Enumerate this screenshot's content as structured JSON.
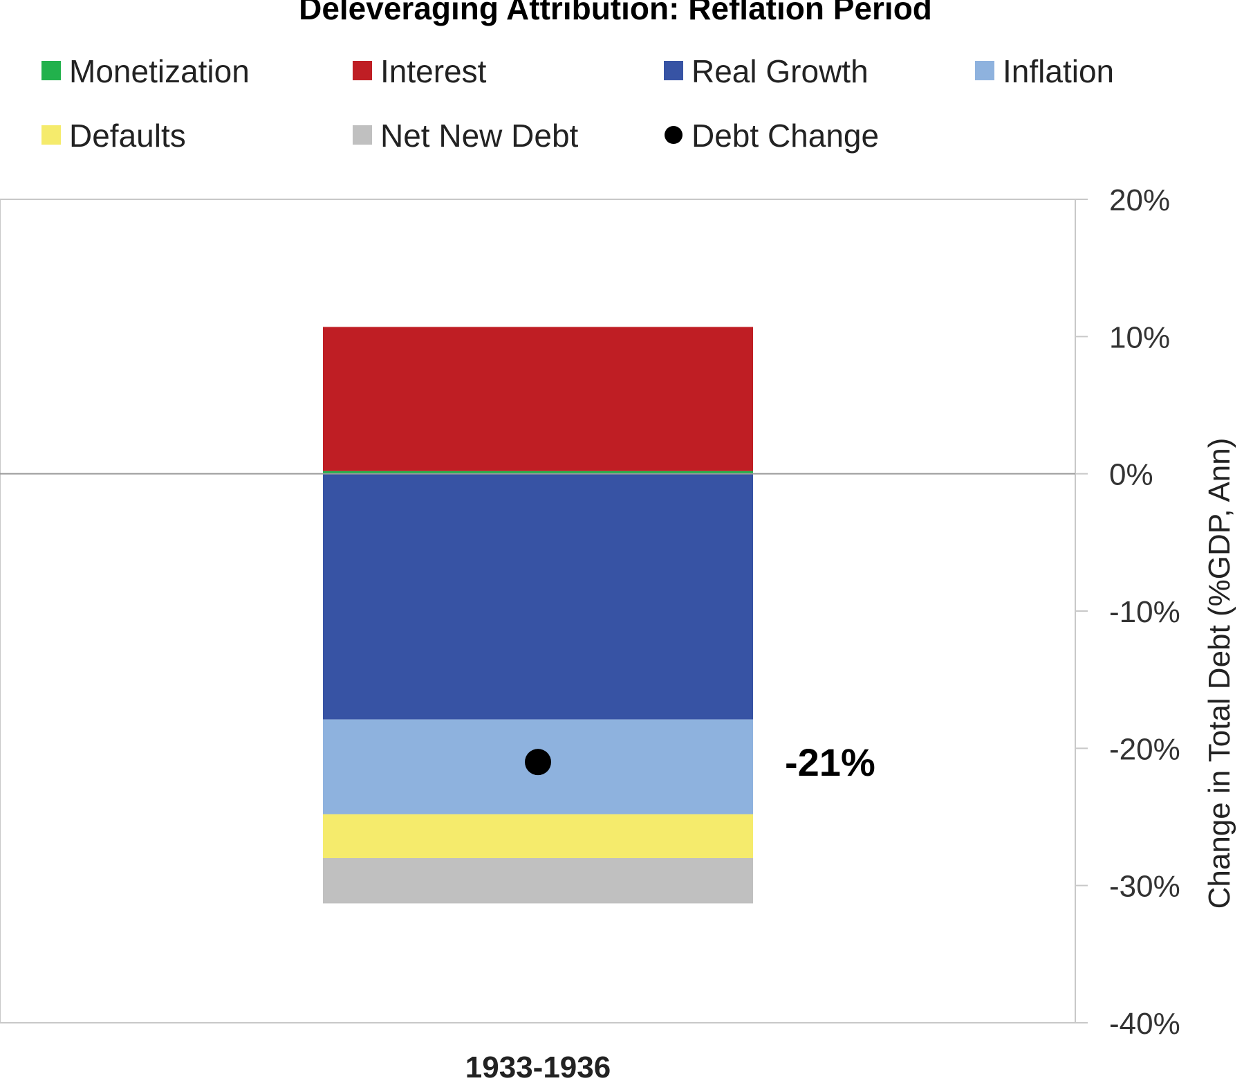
{
  "chart_data": {
    "type": "bar",
    "title": "Deleveraging Attribution: Reflation Period",
    "categories": [
      "1933-1936"
    ],
    "series": [
      {
        "name": "Monetization",
        "color": "#22b14c",
        "values": [
          0.2
        ]
      },
      {
        "name": "Interest",
        "color": "#bf1e24",
        "values": [
          10.5
        ]
      },
      {
        "name": "Real Growth",
        "color": "#3753a4",
        "values": [
          -17.9
        ]
      },
      {
        "name": "Inflation",
        "color": "#8eb2de",
        "values": [
          -6.9
        ]
      },
      {
        "name": "Defaults",
        "color": "#f5eb6c",
        "values": [
          -3.2
        ]
      },
      {
        "name": "Net New Debt",
        "color": "#c0c0c0",
        "values": [
          -3.3
        ]
      }
    ],
    "debt_change": {
      "name": "Debt Change",
      "color": "#000000",
      "values": [
        -21
      ],
      "label": "-21%"
    },
    "ylabel": "Change in Total Debt (%GDP, Ann)",
    "ylim": [
      -40,
      20
    ],
    "yticks": [
      20,
      10,
      0,
      -10,
      -20,
      -30,
      -40
    ],
    "ytick_labels": [
      "20%",
      "10%",
      "0%",
      "-10%",
      "-20%",
      "-30%",
      "-40%"
    ],
    "axis_side": "right",
    "grid": false,
    "legend_position": "top"
  }
}
